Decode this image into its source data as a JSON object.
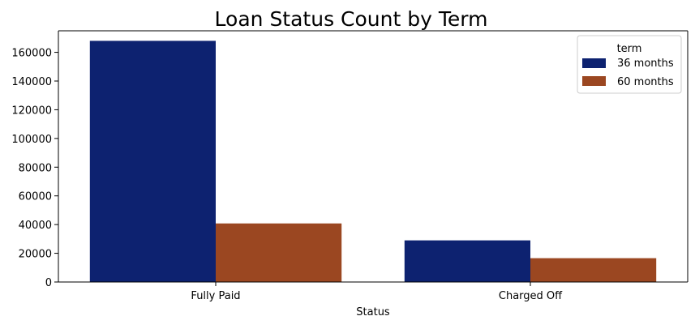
{
  "chart_data": {
    "type": "bar",
    "title": "Loan Status Count by Term",
    "xlabel": "Status",
    "ylabel": "",
    "categories": [
      "Fully Paid",
      "Charged Off"
    ],
    "series": [
      {
        "name": "36 months",
        "values": [
          168000,
          29000
        ],
        "color": "#0d2270"
      },
      {
        "name": "60 months",
        "values": [
          40800,
          16600
        ],
        "color": "#9b4721"
      }
    ],
    "ylim": [
      0,
      175000
    ],
    "yticks": [
      0,
      20000,
      40000,
      60000,
      80000,
      100000,
      120000,
      140000,
      160000
    ],
    "ytick_labels": [
      "0",
      "20000",
      "40000",
      "60000",
      "80000",
      "100000",
      "120000",
      "140000",
      "160000"
    ],
    "grid": false,
    "legend": {
      "title": "term",
      "placement": "top-right"
    }
  }
}
